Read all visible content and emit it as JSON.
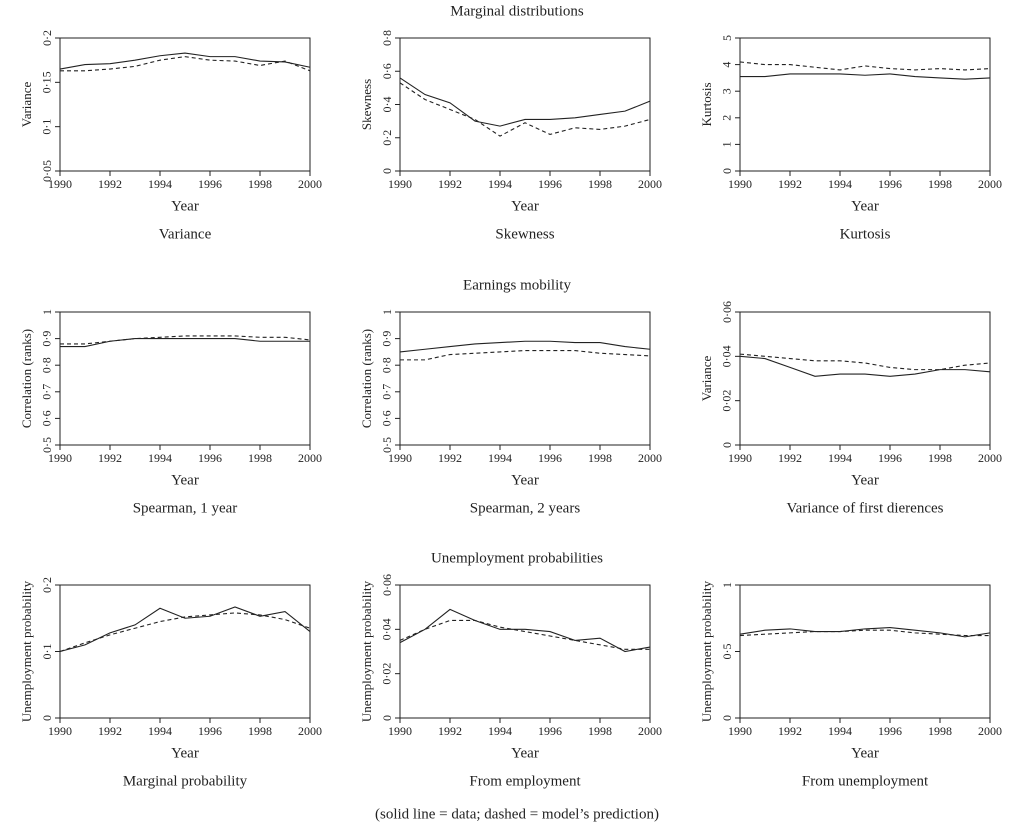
{
  "sections": [
    {
      "title": "Marginal distributions"
    },
    {
      "title": "Earnings mobility"
    },
    {
      "title": "Unemployment probabilities"
    }
  ],
  "caption": "(solid line = data; dashed = model’s prediction)",
  "chart_data": [
    {
      "type": "line",
      "title": "Variance",
      "xlabel": "Year",
      "ylabel": "Variance",
      "x": [
        1990,
        1991,
        1992,
        1993,
        1994,
        1995,
        1996,
        1997,
        1998,
        1999,
        2000
      ],
      "xlim": [
        1990,
        2000
      ],
      "xticks": [
        1990,
        1992,
        1994,
        1996,
        1998,
        2000
      ],
      "ylim": [
        0.05,
        0.2
      ],
      "yticks": [
        {
          "value": 0.05,
          "label": "0·05"
        },
        {
          "value": 0.1,
          "label": "0·1"
        },
        {
          "value": 0.15,
          "label": "0·15"
        },
        {
          "value": 0.2,
          "label": "0·2"
        }
      ],
      "series": [
        {
          "color": "#222",
          "linestyle": "solid",
          "values": [
            0.165,
            0.17,
            0.171,
            0.175,
            0.18,
            0.183,
            0.179,
            0.179,
            0.174,
            0.173,
            0.167
          ]
        },
        {
          "color": "#222",
          "linestyle": "dashed",
          "values": [
            0.163,
            0.163,
            0.165,
            0.168,
            0.175,
            0.179,
            0.175,
            0.174,
            0.169,
            0.174,
            0.163
          ]
        }
      ]
    },
    {
      "type": "line",
      "title": "Skewness",
      "xlabel": "Year",
      "ylabel": "Skewness",
      "x": [
        1990,
        1991,
        1992,
        1993,
        1994,
        1995,
        1996,
        1997,
        1998,
        1999,
        2000
      ],
      "xlim": [
        1990,
        2000
      ],
      "xticks": [
        1990,
        1992,
        1994,
        1996,
        1998,
        2000
      ],
      "ylim": [
        0,
        0.8
      ],
      "yticks": [
        0,
        {
          "value": 0.2,
          "label": "0·2"
        },
        {
          "value": 0.4,
          "label": "0·4"
        },
        {
          "value": 0.6,
          "label": "0·6"
        },
        {
          "value": 0.8,
          "label": "0·8"
        }
      ],
      "series": [
        {
          "color": "#222",
          "linestyle": "solid",
          "values": [
            0.56,
            0.46,
            0.41,
            0.3,
            0.27,
            0.31,
            0.31,
            0.32,
            0.34,
            0.36,
            0.42
          ]
        },
        {
          "color": "#222",
          "linestyle": "dashed",
          "values": [
            0.53,
            0.43,
            0.37,
            0.31,
            0.21,
            0.29,
            0.22,
            0.26,
            0.25,
            0.27,
            0.31
          ]
        }
      ]
    },
    {
      "type": "line",
      "title": "Kurtosis",
      "xlabel": "Year",
      "ylabel": "Kurtosis",
      "x": [
        1990,
        1991,
        1992,
        1993,
        1994,
        1995,
        1996,
        1997,
        1998,
        1999,
        2000
      ],
      "xlim": [
        1990,
        2000
      ],
      "xticks": [
        1990,
        1992,
        1994,
        1996,
        1998,
        2000
      ],
      "ylim": [
        0,
        5
      ],
      "yticks": [
        0,
        1,
        2,
        3,
        4,
        5
      ],
      "series": [
        {
          "color": "#222",
          "linestyle": "solid",
          "values": [
            3.55,
            3.55,
            3.65,
            3.65,
            3.65,
            3.6,
            3.65,
            3.55,
            3.5,
            3.45,
            3.5
          ]
        },
        {
          "color": "#222",
          "linestyle": "dashed",
          "values": [
            4.1,
            4.0,
            4.0,
            3.9,
            3.8,
            3.95,
            3.85,
            3.8,
            3.85,
            3.8,
            3.85
          ]
        }
      ]
    },
    {
      "type": "line",
      "title": "Spearman, 1 year",
      "xlabel": "Year",
      "ylabel": "Correlation (ranks)",
      "x": [
        1990,
        1991,
        1992,
        1993,
        1994,
        1995,
        1996,
        1997,
        1998,
        1999,
        2000
      ],
      "xlim": [
        1990,
        2000
      ],
      "xticks": [
        1990,
        1992,
        1994,
        1996,
        1998,
        2000
      ],
      "ylim": [
        0.5,
        1
      ],
      "yticks": [
        {
          "value": 0.5,
          "label": "0·5"
        },
        {
          "value": 0.6,
          "label": "0·6"
        },
        {
          "value": 0.7,
          "label": "0·7"
        },
        {
          "value": 0.8,
          "label": "0·8"
        },
        {
          "value": 0.9,
          "label": "0·9"
        },
        1
      ],
      "series": [
        {
          "color": "#222",
          "linestyle": "solid",
          "values": [
            0.87,
            0.87,
            0.89,
            0.9,
            0.9,
            0.9,
            0.9,
            0.9,
            0.89,
            0.89,
            0.89
          ]
        },
        {
          "color": "#222",
          "linestyle": "dashed",
          "values": [
            0.88,
            0.88,
            0.89,
            0.9,
            0.905,
            0.91,
            0.91,
            0.91,
            0.905,
            0.905,
            0.895
          ]
        }
      ]
    },
    {
      "type": "line",
      "title": "Spearman, 2 years",
      "xlabel": "Year",
      "ylabel": "Correlation (ranks)",
      "x": [
        1990,
        1991,
        1992,
        1993,
        1994,
        1995,
        1996,
        1997,
        1998,
        1999,
        2000
      ],
      "xlim": [
        1990,
        2000
      ],
      "xticks": [
        1990,
        1992,
        1994,
        1996,
        1998,
        2000
      ],
      "ylim": [
        0.5,
        1
      ],
      "yticks": [
        {
          "value": 0.5,
          "label": "0·5"
        },
        {
          "value": 0.6,
          "label": "0·6"
        },
        {
          "value": 0.7,
          "label": "0·7"
        },
        {
          "value": 0.8,
          "label": "0·8"
        },
        {
          "value": 0.9,
          "label": "0·9"
        },
        1
      ],
      "series": [
        {
          "color": "#222",
          "linestyle": "solid",
          "values": [
            0.85,
            0.86,
            0.87,
            0.88,
            0.885,
            0.89,
            0.89,
            0.885,
            0.885,
            0.87,
            0.86
          ]
        },
        {
          "color": "#222",
          "linestyle": "dashed",
          "values": [
            0.82,
            0.82,
            0.84,
            0.845,
            0.85,
            0.855,
            0.855,
            0.855,
            0.845,
            0.84,
            0.835
          ]
        }
      ]
    },
    {
      "type": "line",
      "title": "Variance of first dierences",
      "xlabel": "Year",
      "ylabel": "Variance",
      "x": [
        1990,
        1991,
        1992,
        1993,
        1994,
        1995,
        1996,
        1997,
        1998,
        1999,
        2000
      ],
      "xlim": [
        1990,
        2000
      ],
      "xticks": [
        1990,
        1992,
        1994,
        1996,
        1998,
        2000
      ],
      "ylim": [
        0,
        0.06
      ],
      "yticks": [
        0,
        {
          "value": 0.02,
          "label": "0·02"
        },
        {
          "value": 0.04,
          "label": "0·04"
        },
        {
          "value": 0.06,
          "label": "0·06"
        }
      ],
      "series": [
        {
          "color": "#222",
          "linestyle": "solid",
          "values": [
            0.04,
            0.039,
            0.035,
            0.031,
            0.032,
            0.032,
            0.031,
            0.032,
            0.034,
            0.034,
            0.033
          ]
        },
        {
          "color": "#222",
          "linestyle": "dashed",
          "values": [
            0.041,
            0.04,
            0.039,
            0.038,
            0.038,
            0.037,
            0.035,
            0.034,
            0.034,
            0.036,
            0.037
          ]
        }
      ]
    },
    {
      "type": "line",
      "title": "Marginal probability",
      "xlabel": "Year",
      "ylabel": "Unemployment probability",
      "x": [
        1990,
        1991,
        1992,
        1993,
        1994,
        1995,
        1996,
        1997,
        1998,
        1999,
        2000
      ],
      "xlim": [
        1990,
        2000
      ],
      "xticks": [
        1990,
        1992,
        1994,
        1996,
        1998,
        2000
      ],
      "ylim": [
        0,
        0.2
      ],
      "yticks": [
        0,
        {
          "value": 0.1,
          "label": "0·1"
        },
        {
          "value": 0.2,
          "label": "0·2"
        }
      ],
      "series": [
        {
          "color": "#222",
          "linestyle": "solid",
          "values": [
            0.1,
            0.11,
            0.128,
            0.14,
            0.165,
            0.15,
            0.153,
            0.167,
            0.153,
            0.16,
            0.13
          ]
        },
        {
          "color": "#222",
          "linestyle": "dashed",
          "values": [
            0.1,
            0.113,
            0.125,
            0.135,
            0.145,
            0.152,
            0.155,
            0.158,
            0.155,
            0.148,
            0.135
          ]
        }
      ]
    },
    {
      "type": "line",
      "title": "From employment",
      "xlabel": "Year",
      "ylabel": "Unemployment probability",
      "x": [
        1990,
        1991,
        1992,
        1993,
        1994,
        1995,
        1996,
        1997,
        1998,
        1999,
        2000
      ],
      "xlim": [
        1990,
        2000
      ],
      "xticks": [
        1990,
        1992,
        1994,
        1996,
        1998,
        2000
      ],
      "ylim": [
        0,
        0.06
      ],
      "yticks": [
        0,
        {
          "value": 0.02,
          "label": "0·02"
        },
        {
          "value": 0.04,
          "label": "0·04"
        },
        {
          "value": 0.06,
          "label": "0·06"
        }
      ],
      "series": [
        {
          "color": "#222",
          "linestyle": "solid",
          "values": [
            0.034,
            0.04,
            0.049,
            0.044,
            0.04,
            0.04,
            0.039,
            0.035,
            0.036,
            0.03,
            0.032
          ]
        },
        {
          "color": "#222",
          "linestyle": "dashed",
          "values": [
            0.035,
            0.04,
            0.044,
            0.044,
            0.041,
            0.039,
            0.037,
            0.035,
            0.033,
            0.031,
            0.031
          ]
        }
      ]
    },
    {
      "type": "line",
      "title": "From unemployment",
      "xlabel": "Year",
      "ylabel": "Unemployment probability",
      "x": [
        1990,
        1991,
        1992,
        1993,
        1994,
        1995,
        1996,
        1997,
        1998,
        1999,
        2000
      ],
      "xlim": [
        1990,
        2000
      ],
      "xticks": [
        1990,
        1992,
        1994,
        1996,
        1998,
        2000
      ],
      "ylim": [
        0,
        1
      ],
      "yticks": [
        0,
        {
          "value": 0.5,
          "label": "0·5"
        },
        1
      ],
      "series": [
        {
          "color": "#222",
          "linestyle": "solid",
          "values": [
            0.63,
            0.66,
            0.67,
            0.65,
            0.65,
            0.67,
            0.68,
            0.66,
            0.64,
            0.61,
            0.64
          ]
        },
        {
          "color": "#222",
          "linestyle": "dashed",
          "values": [
            0.62,
            0.63,
            0.64,
            0.65,
            0.65,
            0.66,
            0.66,
            0.64,
            0.63,
            0.62,
            0.62
          ]
        }
      ]
    }
  ]
}
